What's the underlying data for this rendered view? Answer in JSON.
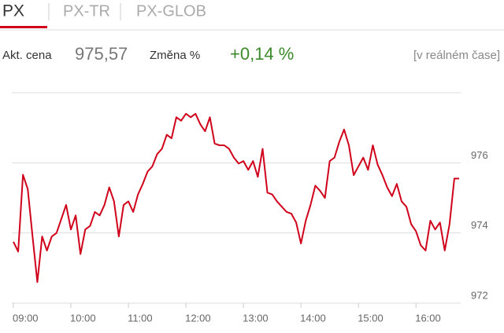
{
  "tabs": [
    "PX",
    "PX-TR",
    "PX-GLOB"
  ],
  "quote": {
    "price_label": "Akt. cena",
    "price": "975,57",
    "change_label": "Změna %",
    "change": "+0,14 %",
    "realtime": "[v reálném čase]"
  },
  "chart_data": {
    "type": "line",
    "color": "#d0021b",
    "x": [
      "09:00",
      "09:05",
      "09:10",
      "09:15",
      "09:20",
      "09:25",
      "09:30",
      "09:35",
      "09:40",
      "09:45",
      "09:50",
      "09:55",
      "10:00",
      "10:05",
      "10:10",
      "10:15",
      "10:20",
      "10:25",
      "10:30",
      "10:35",
      "10:40",
      "10:45",
      "10:50",
      "10:55",
      "11:00",
      "11:05",
      "11:10",
      "11:15",
      "11:20",
      "11:25",
      "11:30",
      "11:35",
      "11:40",
      "11:45",
      "11:50",
      "11:55",
      "12:00",
      "12:05",
      "12:10",
      "12:15",
      "12:20",
      "12:25",
      "12:30",
      "12:35",
      "12:40",
      "12:45",
      "12:50",
      "12:55",
      "13:00",
      "13:05",
      "13:10",
      "13:15",
      "13:20",
      "13:25",
      "13:30",
      "13:35",
      "13:40",
      "13:45",
      "13:50",
      "13:55",
      "14:00",
      "14:05",
      "14:10",
      "14:15",
      "14:20",
      "14:25",
      "14:30",
      "14:35",
      "14:40",
      "14:45",
      "14:50",
      "14:55",
      "15:00",
      "15:05",
      "15:10",
      "15:15",
      "15:20",
      "15:25",
      "15:30",
      "15:35",
      "15:40",
      "15:45",
      "15:50",
      "15:55",
      "16:00",
      "16:05",
      "16:10",
      "16:15",
      "16:20",
      "16:25",
      "16:30",
      "16:35",
      "16:40",
      "16:45"
    ],
    "values": [
      973.75,
      973.47,
      975.66,
      975.25,
      973.9,
      972.6,
      973.9,
      973.5,
      973.9,
      974.0,
      974.4,
      974.8,
      974.1,
      974.5,
      973.4,
      974.1,
      974.2,
      974.6,
      974.5,
      974.8,
      975.3,
      974.9,
      973.9,
      974.8,
      974.9,
      974.6,
      975.1,
      975.4,
      975.75,
      975.9,
      976.25,
      976.4,
      976.8,
      976.7,
      977.3,
      977.2,
      977.4,
      977.3,
      977.4,
      977.1,
      976.9,
      977.3,
      976.55,
      976.5,
      976.5,
      976.4,
      976.15,
      975.98,
      976.05,
      975.8,
      976.05,
      975.6,
      976.4,
      975.15,
      975.1,
      974.9,
      974.75,
      974.6,
      974.55,
      974.3,
      973.7,
      974.35,
      974.8,
      975.35,
      975.2,
      975.0,
      976.05,
      976.15,
      976.6,
      976.95,
      976.5,
      975.65,
      975.9,
      976.15,
      975.8,
      976.5,
      975.95,
      975.65,
      975.3,
      975.05,
      975.4,
      974.9,
      974.75,
      974.25,
      974.05,
      973.65,
      973.5,
      974.35,
      974.1,
      974.3,
      973.5,
      974.25,
      975.55,
      975.55
    ],
    "xlim": [
      "09:00",
      "16:45"
    ],
    "xticks": [
      "09:00",
      "10:00",
      "11:00",
      "12:00",
      "13:00",
      "14:00",
      "15:00",
      "16:00"
    ],
    "ylim": [
      972,
      978
    ],
    "yticks": [
      972,
      974,
      976
    ],
    "grid": true
  }
}
